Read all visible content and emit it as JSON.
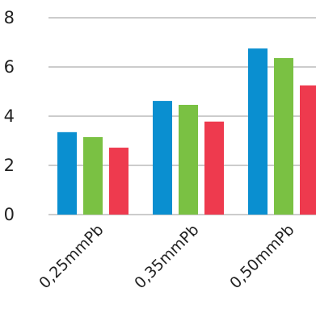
{
  "chart_data": {
    "type": "bar",
    "title": "",
    "xlabel": "",
    "ylabel": "",
    "categories": [
      "0,25mmPb",
      "0,35mmPb",
      "0,50mmPb"
    ],
    "series": [
      {
        "values": [
          3.35,
          4.62,
          6.75
        ],
        "color": "#0a8fd0"
      },
      {
        "values": [
          3.15,
          4.46,
          6.36
        ],
        "color": "#7ac143"
      },
      {
        "values": [
          2.72,
          3.78,
          5.25
        ],
        "color": "#ee3a4e"
      }
    ],
    "ylim": [
      0,
      8
    ],
    "yticks": [
      "0",
      "2",
      "4",
      "6",
      "8"
    ],
    "grid": true,
    "legend": "none"
  }
}
